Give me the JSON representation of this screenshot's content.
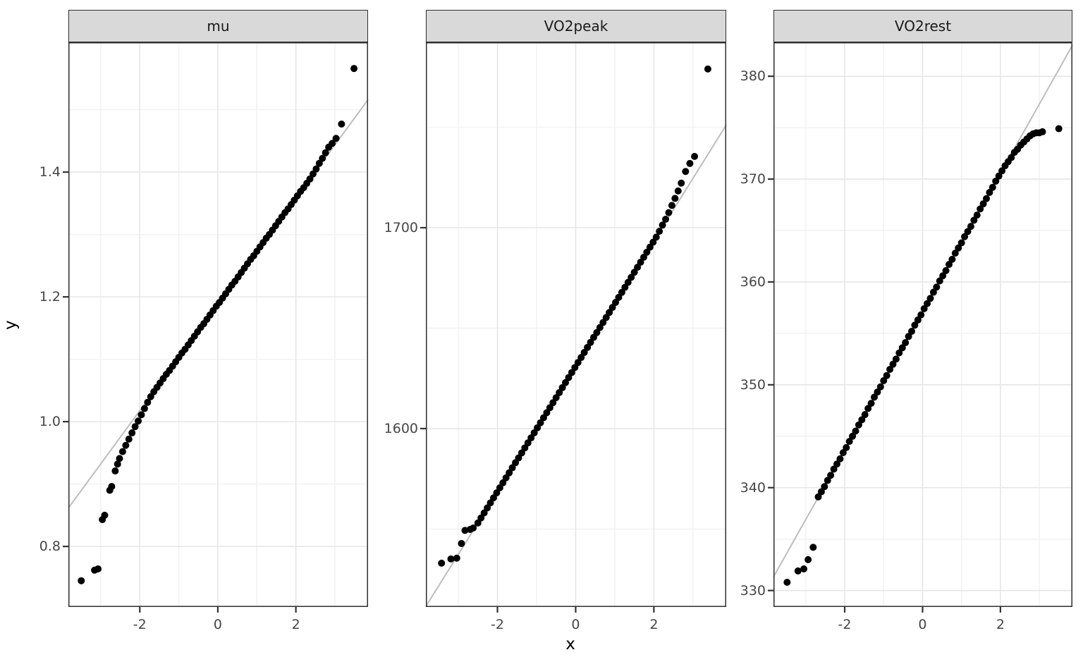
{
  "figure": {
    "x_axis_title": "x",
    "y_axis_title": "y"
  },
  "style": {
    "point_color": "#000000",
    "ref_line_color": "#bdbdbd",
    "strip_fill": "#d9d9d9",
    "panel_border": "#2e2e2e",
    "grid_major": "#e6e6e6",
    "grid_minor": "#f2f2f2",
    "tick_mark_color": "#333333",
    "tick_text_color": "#464646"
  },
  "chart_data": {
    "type": "scatter",
    "subtype": "qq-plot-faceted",
    "title": "",
    "xlabel": "x",
    "ylabel": "y",
    "legend": "none",
    "grid": "on",
    "xlim": [
      -3.83,
      3.85
    ],
    "x_ticks": [
      -2,
      0,
      2
    ],
    "x_tick_labels": [
      "-2",
      "0",
      "2"
    ],
    "x_minor": [
      -3,
      -1,
      1,
      3
    ],
    "panels": [
      {
        "title": "mu",
        "ylim": [
          0.703,
          1.608
        ],
        "y_ticks": [
          0.8,
          1.0,
          1.2,
          1.4
        ],
        "y_tick_labels": [
          "0.8",
          "1.0",
          "1.2",
          "1.4"
        ],
        "y_minor": [
          0.9,
          1.1,
          1.3,
          1.5
        ],
        "ref_line": {
          "intercept": 1.188,
          "slope": 0.0852
        },
        "points": [
          [
            -3.5,
            0.745
          ],
          [
            -3.16,
            0.762
          ],
          [
            -3.07,
            0.764
          ],
          [
            -2.96,
            0.843
          ],
          [
            -2.9,
            0.85
          ],
          [
            -2.77,
            0.89
          ],
          [
            -2.72,
            0.896
          ],
          [
            -2.63,
            0.921
          ],
          [
            -2.57,
            0.932
          ],
          [
            -2.52,
            0.941
          ],
          [
            -2.44,
            0.952
          ],
          [
            -2.36,
            0.962
          ],
          [
            -2.28,
            0.972
          ],
          [
            -2.2,
            0.982
          ],
          [
            -2.12,
            0.992
          ],
          [
            -2.04,
            1.001
          ],
          [
            -1.96,
            1.011
          ],
          [
            -1.88,
            1.021
          ],
          [
            -1.8,
            1.031
          ],
          [
            -1.72,
            1.04
          ],
          [
            -1.64,
            1.048
          ],
          [
            -1.56,
            1.055
          ],
          [
            -1.48,
            1.062
          ],
          [
            -1.4,
            1.069
          ],
          [
            -1.32,
            1.076
          ],
          [
            -1.24,
            1.082
          ],
          [
            -1.16,
            1.089
          ],
          [
            -1.08,
            1.096
          ],
          [
            -1.0,
            1.103
          ],
          [
            -0.92,
            1.11
          ],
          [
            -0.84,
            1.116
          ],
          [
            -0.76,
            1.123
          ],
          [
            -0.68,
            1.13
          ],
          [
            -0.6,
            1.137
          ],
          [
            -0.52,
            1.144
          ],
          [
            -0.44,
            1.151
          ],
          [
            -0.36,
            1.157
          ],
          [
            -0.28,
            1.164
          ],
          [
            -0.2,
            1.171
          ],
          [
            -0.12,
            1.178
          ],
          [
            -0.04,
            1.185
          ],
          [
            0.04,
            1.191
          ],
          [
            0.12,
            1.198
          ],
          [
            0.2,
            1.205
          ],
          [
            0.28,
            1.212
          ],
          [
            0.36,
            1.219
          ],
          [
            0.44,
            1.225
          ],
          [
            0.52,
            1.232
          ],
          [
            0.6,
            1.239
          ],
          [
            0.68,
            1.246
          ],
          [
            0.76,
            1.253
          ],
          [
            0.84,
            1.26
          ],
          [
            0.92,
            1.266
          ],
          [
            1.0,
            1.273
          ],
          [
            1.08,
            1.28
          ],
          [
            1.16,
            1.287
          ],
          [
            1.24,
            1.294
          ],
          [
            1.32,
            1.3
          ],
          [
            1.4,
            1.307
          ],
          [
            1.48,
            1.314
          ],
          [
            1.56,
            1.321
          ],
          [
            1.64,
            1.328
          ],
          [
            1.72,
            1.335
          ],
          [
            1.8,
            1.341
          ],
          [
            1.88,
            1.348
          ],
          [
            1.96,
            1.355
          ],
          [
            2.04,
            1.362
          ],
          [
            2.12,
            1.369
          ],
          [
            2.2,
            1.375
          ],
          [
            2.28,
            1.382
          ],
          [
            2.36,
            1.389
          ],
          [
            2.44,
            1.397
          ],
          [
            2.52,
            1.405
          ],
          [
            2.6,
            1.414
          ],
          [
            2.68,
            1.422
          ],
          [
            2.76,
            1.431
          ],
          [
            2.84,
            1.44
          ],
          [
            2.93,
            1.446
          ],
          [
            3.03,
            1.454
          ],
          [
            3.17,
            1.477
          ],
          [
            3.49,
            1.566
          ]
        ]
      },
      {
        "title": "VO2peak",
        "ylim": [
          1511.2,
          1792.3
        ],
        "y_ticks": [
          1600,
          1700
        ],
        "y_tick_labels": [
          "1600",
          "1700"
        ],
        "y_minor": [
          1550,
          1650,
          1750
        ],
        "ref_line": {
          "intercept": 1631,
          "slope": 31.2
        },
        "points": [
          [
            -3.43,
            1533.0
          ],
          [
            -3.19,
            1535.1
          ],
          [
            -3.04,
            1535.5
          ],
          [
            -2.92,
            1542.8
          ],
          [
            -2.83,
            1549.3
          ],
          [
            -2.7,
            1549.8
          ],
          [
            -2.62,
            1550.5
          ],
          [
            -2.5,
            1553.0
          ],
          [
            -2.42,
            1555.5
          ],
          [
            -2.34,
            1558.0
          ],
          [
            -2.26,
            1560.5
          ],
          [
            -2.18,
            1563.0
          ],
          [
            -2.1,
            1565.5
          ],
          [
            -2.02,
            1568.0
          ],
          [
            -1.94,
            1570.5
          ],
          [
            -1.86,
            1573.0
          ],
          [
            -1.78,
            1575.5
          ],
          [
            -1.7,
            1578.0
          ],
          [
            -1.62,
            1580.5
          ],
          [
            -1.54,
            1583.0
          ],
          [
            -1.46,
            1585.4
          ],
          [
            -1.38,
            1587.9
          ],
          [
            -1.3,
            1590.4
          ],
          [
            -1.22,
            1592.9
          ],
          [
            -1.14,
            1595.4
          ],
          [
            -1.06,
            1597.9
          ],
          [
            -0.98,
            1600.4
          ],
          [
            -0.9,
            1602.9
          ],
          [
            -0.82,
            1605.4
          ],
          [
            -0.74,
            1607.9
          ],
          [
            -0.66,
            1610.4
          ],
          [
            -0.58,
            1612.9
          ],
          [
            -0.5,
            1615.4
          ],
          [
            -0.42,
            1617.9
          ],
          [
            -0.34,
            1620.4
          ],
          [
            -0.26,
            1622.9
          ],
          [
            -0.18,
            1625.4
          ],
          [
            -0.1,
            1627.9
          ],
          [
            -0.02,
            1630.4
          ],
          [
            0.06,
            1632.9
          ],
          [
            0.14,
            1635.4
          ],
          [
            0.22,
            1637.9
          ],
          [
            0.3,
            1640.4
          ],
          [
            0.38,
            1642.9
          ],
          [
            0.46,
            1645.4
          ],
          [
            0.54,
            1647.8
          ],
          [
            0.62,
            1650.3
          ],
          [
            0.7,
            1652.8
          ],
          [
            0.78,
            1655.3
          ],
          [
            0.86,
            1657.8
          ],
          [
            0.94,
            1660.3
          ],
          [
            1.02,
            1662.8
          ],
          [
            1.1,
            1665.3
          ],
          [
            1.18,
            1667.8
          ],
          [
            1.26,
            1670.3
          ],
          [
            1.34,
            1672.8
          ],
          [
            1.42,
            1675.3
          ],
          [
            1.5,
            1677.8
          ],
          [
            1.58,
            1680.3
          ],
          [
            1.66,
            1682.8
          ],
          [
            1.74,
            1685.3
          ],
          [
            1.82,
            1687.8
          ],
          [
            1.9,
            1690.3
          ],
          [
            1.98,
            1692.8
          ],
          [
            2.06,
            1695.3
          ],
          [
            2.14,
            1698.2
          ],
          [
            2.22,
            1701.3
          ],
          [
            2.3,
            1704.2
          ],
          [
            2.38,
            1707.5
          ],
          [
            2.46,
            1711.1
          ],
          [
            2.54,
            1714.6
          ],
          [
            2.62,
            1718.3
          ],
          [
            2.7,
            1722.2
          ],
          [
            2.81,
            1728.0
          ],
          [
            2.92,
            1732.0
          ],
          [
            3.04,
            1735.5
          ],
          [
            3.38,
            1779.0
          ]
        ]
      },
      {
        "title": "VO2rest",
        "ylim": [
          328.4,
          383.3
        ],
        "y_ticks": [
          330,
          340,
          350,
          360,
          370,
          380
        ],
        "y_tick_labels": [
          "330",
          "340",
          "350",
          "360",
          "370",
          "380"
        ],
        "y_minor": [
          335,
          345,
          355,
          365,
          375
        ],
        "ref_line": {
          "intercept": 357.1,
          "slope": 6.73
        },
        "points": [
          [
            -3.48,
            330.8
          ],
          [
            -3.2,
            331.9
          ],
          [
            -3.05,
            332.1
          ],
          [
            -2.94,
            333.0
          ],
          [
            -2.81,
            334.2
          ],
          [
            -2.68,
            339.1
          ],
          [
            -2.6,
            339.6
          ],
          [
            -2.52,
            340.1
          ],
          [
            -2.44,
            340.7
          ],
          [
            -2.36,
            341.2
          ],
          [
            -2.28,
            341.8
          ],
          [
            -2.2,
            342.3
          ],
          [
            -2.12,
            342.8
          ],
          [
            -2.04,
            343.4
          ],
          [
            -1.96,
            343.9
          ],
          [
            -1.88,
            344.5
          ],
          [
            -1.8,
            345.0
          ],
          [
            -1.72,
            345.5
          ],
          [
            -1.64,
            346.1
          ],
          [
            -1.56,
            346.6
          ],
          [
            -1.48,
            347.1
          ],
          [
            -1.4,
            347.7
          ],
          [
            -1.32,
            348.2
          ],
          [
            -1.24,
            348.8
          ],
          [
            -1.16,
            349.3
          ],
          [
            -1.08,
            349.8
          ],
          [
            -1.0,
            350.4
          ],
          [
            -0.92,
            350.9
          ],
          [
            -0.84,
            351.5
          ],
          [
            -0.76,
            352.0
          ],
          [
            -0.68,
            352.5
          ],
          [
            -0.6,
            353.1
          ],
          [
            -0.52,
            353.6
          ],
          [
            -0.44,
            354.1
          ],
          [
            -0.36,
            354.7
          ],
          [
            -0.28,
            355.2
          ],
          [
            -0.2,
            355.8
          ],
          [
            -0.12,
            356.3
          ],
          [
            -0.04,
            356.8
          ],
          [
            0.04,
            357.4
          ],
          [
            0.12,
            357.9
          ],
          [
            0.2,
            358.4
          ],
          [
            0.28,
            359.0
          ],
          [
            0.36,
            359.5
          ],
          [
            0.44,
            360.1
          ],
          [
            0.52,
            360.6
          ],
          [
            0.6,
            361.1
          ],
          [
            0.68,
            361.7
          ],
          [
            0.76,
            362.2
          ],
          [
            0.84,
            362.8
          ],
          [
            0.92,
            363.3
          ],
          [
            1.0,
            363.8
          ],
          [
            1.08,
            364.4
          ],
          [
            1.16,
            364.9
          ],
          [
            1.24,
            365.4
          ],
          [
            1.32,
            366.0
          ],
          [
            1.4,
            366.5
          ],
          [
            1.48,
            367.1
          ],
          [
            1.56,
            367.6
          ],
          [
            1.64,
            368.1
          ],
          [
            1.72,
            368.7
          ],
          [
            1.8,
            369.2
          ],
          [
            1.88,
            369.8
          ],
          [
            1.96,
            370.3
          ],
          [
            2.04,
            370.8
          ],
          [
            2.12,
            371.3
          ],
          [
            2.2,
            371.7
          ],
          [
            2.28,
            372.1
          ],
          [
            2.36,
            372.6
          ],
          [
            2.44,
            372.9
          ],
          [
            2.52,
            373.3
          ],
          [
            2.6,
            373.6
          ],
          [
            2.68,
            373.9
          ],
          [
            2.76,
            374.2
          ],
          [
            2.84,
            374.4
          ],
          [
            2.92,
            374.5
          ],
          [
            3.0,
            374.5
          ],
          [
            3.08,
            374.6
          ],
          [
            3.5,
            374.9
          ]
        ]
      }
    ]
  }
}
